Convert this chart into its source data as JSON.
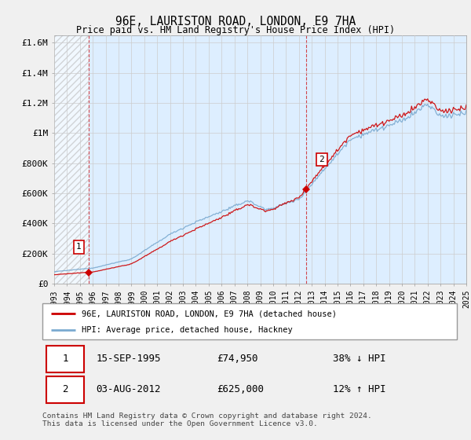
{
  "title": "96E, LAURISTON ROAD, LONDON, E9 7HA",
  "subtitle": "Price paid vs. HM Land Registry's House Price Index (HPI)",
  "ylabel_ticks": [
    "£0",
    "£200K",
    "£400K",
    "£600K",
    "£800K",
    "£1M",
    "£1.2M",
    "£1.4M",
    "£1.6M"
  ],
  "ytick_values": [
    0,
    200000,
    400000,
    600000,
    800000,
    1000000,
    1200000,
    1400000,
    1600000
  ],
  "ylim": [
    0,
    1650000
  ],
  "sale1_yr": 1995.708,
  "sale1_price": 74950,
  "sale2_yr": 2012.583,
  "sale2_price": 625000,
  "legend_entry1": "96E, LAURISTON ROAD, LONDON, E9 7HA (detached house)",
  "legend_entry2": "HPI: Average price, detached house, Hackney",
  "table_row1": [
    "1",
    "15-SEP-1995",
    "£74,950",
    "38% ↓ HPI"
  ],
  "table_row2": [
    "2",
    "03-AUG-2012",
    "£625,000",
    "12% ↑ HPI"
  ],
  "footnote": "Contains HM Land Registry data © Crown copyright and database right 2024.\nThis data is licensed under the Open Government Licence v3.0.",
  "sale_color": "#cc0000",
  "hpi_color": "#7aaad0",
  "hpi_fill_color": "#ddeeff",
  "background_color": "#f0f0f0",
  "plot_bg_color": "#ddeeff",
  "grid_color": "#cccccc",
  "x_start_year": 1993,
  "x_end_year": 2025
}
